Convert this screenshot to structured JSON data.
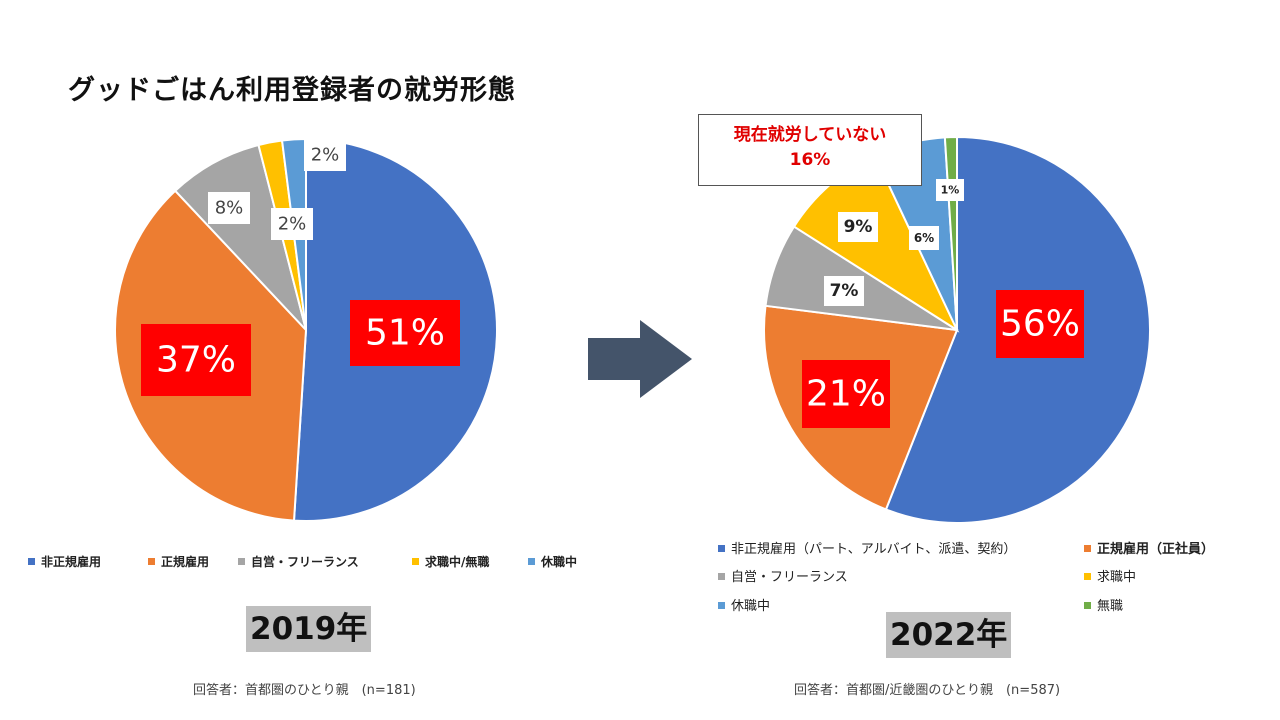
{
  "title": "グッドごはん利用登録者の就労形態",
  "colors": {
    "blue": "#4472C4",
    "orange": "#ED7D31",
    "gray": "#A5A5A5",
    "yellow": "#FFC000",
    "lightblue": "#5B9BD5",
    "green": "#70AD47",
    "red_label": "#FF0000",
    "arrow": "#44546A"
  },
  "chart_data": [
    {
      "type": "pie",
      "year_label": "2019年",
      "respondents_note": "回答者：首都圏のひとり親　(n=181)",
      "categories": [
        "非正規雇用",
        "正規雇用",
        "自営・フリーランス",
        "求職中/無職",
        "休職中"
      ],
      "values": [
        51,
        37,
        8,
        2,
        2
      ],
      "labels": [
        "51%",
        "37%",
        "8%",
        "2%",
        "2%"
      ],
      "legend": [
        "非正規雇用",
        "正規雇用",
        "自営・フリーランス",
        "求職中/無職",
        "休職中"
      ],
      "legend_position": "bottom"
    },
    {
      "type": "pie",
      "year_label": "2022年",
      "respondents_note": "回答者：首都圏/近畿圏のひとり親　(n=587)",
      "categories": [
        "非正規雇用（パート、アルバイト、派遣、契約）",
        "正規雇用（正社員）",
        "自営・フリーランス",
        "求職中",
        "休職中",
        "無職"
      ],
      "values": [
        56,
        21,
        7,
        9,
        6,
        1
      ],
      "labels": [
        "56%",
        "21%",
        "7%",
        "9%",
        "6%",
        "1%"
      ],
      "legend": [
        "非正規雇用（パート、アルバイト、派遣、契約）",
        "正規雇用（正社員）",
        "自営・フリーランス",
        "求職中",
        "休職中",
        "無職"
      ],
      "legend_position": "bottom",
      "callout": {
        "line1": "現在就労していない",
        "line2": "16%"
      }
    }
  ]
}
